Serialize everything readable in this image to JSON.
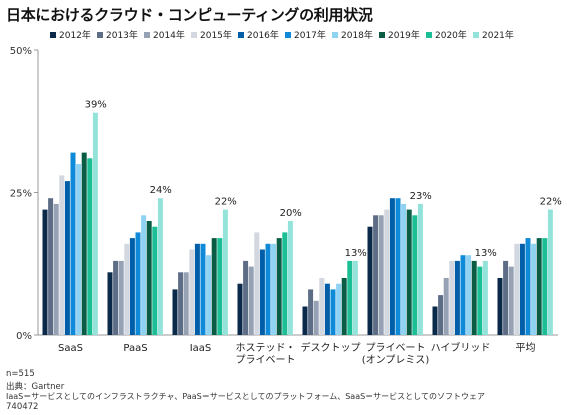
{
  "title": "日本におけるクラウド・コンピューティングの利用状況",
  "notes": {
    "n": "n=515",
    "source": "出典：Gartner",
    "definition": "IaaS＝サービスとしてのインフラストラクチャ、PaaS＝サービスとしてのプラットフォーム、SaaS＝サービスとしてのソフトウェア",
    "id": "740472"
  },
  "chart_data": {
    "type": "bar",
    "title": "日本におけるクラウド・コンピューティングの利用状況",
    "xlabel": "",
    "ylabel": "",
    "ylim": [
      0,
      50
    ],
    "yticks": [
      0,
      25,
      50
    ],
    "ytick_labels": [
      "0%",
      "25%",
      "50%"
    ],
    "grid": false,
    "legend_position": "top",
    "categories": [
      "SaaS",
      "PaaS",
      "IaaS",
      "ホステッド・\nプライベート",
      "デスクトップ",
      "プライベート\n(オンプレミス)",
      "ハイブリッド",
      "平均"
    ],
    "series": [
      {
        "name": "2012年",
        "color": "#0b2a4a",
        "values": [
          22,
          11,
          8,
          9,
          5,
          19,
          5,
          10
        ]
      },
      {
        "name": "2013年",
        "color": "#5d6d86",
        "values": [
          24,
          13,
          11,
          13,
          8,
          21,
          7,
          13
        ]
      },
      {
        "name": "2014年",
        "color": "#97a1b4",
        "values": [
          23,
          13,
          11,
          12,
          6,
          21,
          10,
          12
        ]
      },
      {
        "name": "2015年",
        "color": "#d2d7e0",
        "values": [
          28,
          16,
          15,
          18,
          10,
          22,
          13,
          16
        ]
      },
      {
        "name": "2016年",
        "color": "#005ea8",
        "values": [
          27,
          17,
          16,
          15,
          9,
          24,
          13,
          16
        ]
      },
      {
        "name": "2017年",
        "color": "#0f8ad8",
        "values": [
          32,
          18,
          16,
          16,
          8,
          24,
          14,
          17
        ]
      },
      {
        "name": "2018年",
        "color": "#8fd2f2",
        "values": [
          30,
          21,
          14,
          16,
          9,
          23,
          14,
          16
        ]
      },
      {
        "name": "2019年",
        "color": "#0b5c44",
        "values": [
          32,
          20,
          17,
          17,
          10,
          22,
          13,
          17
        ]
      },
      {
        "name": "2020年",
        "color": "#1cbf95",
        "values": [
          31,
          19,
          17,
          18,
          13,
          21,
          12,
          17
        ]
      },
      {
        "name": "2021年",
        "color": "#93e3da",
        "values": [
          39,
          24,
          22,
          20,
          13,
          23,
          13,
          22
        ]
      }
    ],
    "data_labels": [
      "39%",
      "24%",
      "22%",
      "20%",
      "13%",
      "23%",
      "13%",
      "22%"
    ]
  }
}
